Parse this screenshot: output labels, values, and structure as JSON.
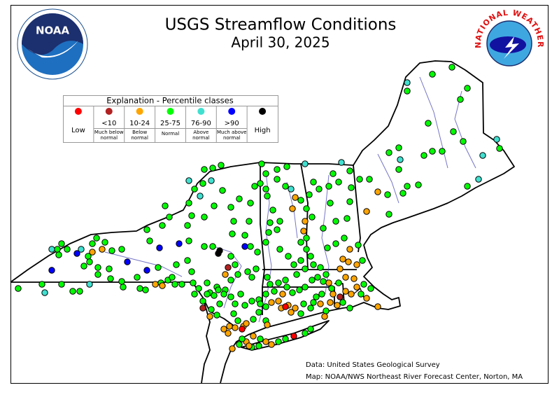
{
  "header": {
    "title": "USGS Streamflow Conditions",
    "subtitle": "April 30, 2025"
  },
  "logos": {
    "noaa": "NOAA",
    "nws": "NATIONAL WEATHER SERVICE"
  },
  "legend": {
    "title": "Explanation - Percentile classes",
    "classes": [
      {
        "range": "Low",
        "label": "",
        "color": "#ff0000"
      },
      {
        "range": "<10",
        "label": "Much below normal",
        "color": "#b22222"
      },
      {
        "range": "10-24",
        "label": "Below normal",
        "color": "#ffa500"
      },
      {
        "range": "25-75",
        "label": "Normal",
        "color": "#00ff00"
      },
      {
        "range": "76-90",
        "label": "Above normal",
        "color": "#40e0d0"
      },
      {
        "range": ">90",
        "label": "Much above normal",
        "color": "#0000ff"
      },
      {
        "range": "High",
        "label": "",
        "color": "#000000"
      }
    ]
  },
  "credits": {
    "data": "Data: United States Geological Survey",
    "map": "Map: NOAA/NWS Northeast River Forecast Center, Norton, MA"
  }
}
